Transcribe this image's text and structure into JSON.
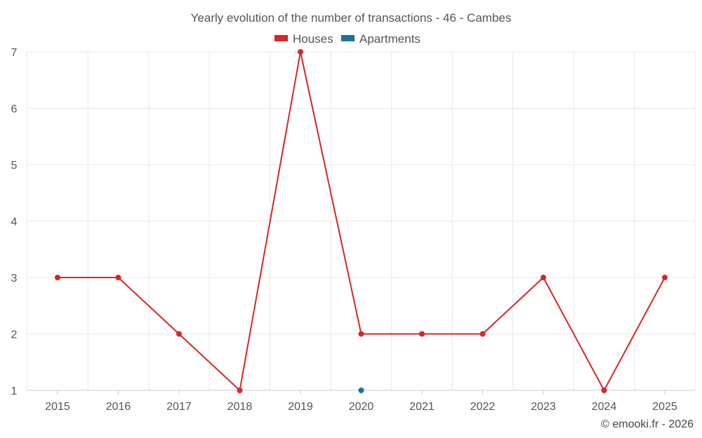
{
  "chart_data": {
    "type": "line",
    "title": "Yearly evolution of the number of transactions - 46 - Cambes",
    "categories": [
      "2015",
      "2016",
      "2017",
      "2018",
      "2019",
      "2020",
      "2021",
      "2022",
      "2023",
      "2024",
      "2025"
    ],
    "series": [
      {
        "name": "Houses",
        "color": "#d62728",
        "values": [
          3,
          3,
          2,
          1,
          7,
          2,
          2,
          2,
          3,
          1,
          3
        ]
      },
      {
        "name": "Apartments",
        "color": "#1f6fa3",
        "values": [
          null,
          null,
          null,
          null,
          null,
          1,
          null,
          null,
          null,
          null,
          null
        ]
      }
    ],
    "ylim": [
      1,
      7
    ],
    "yticks": [
      1,
      2,
      3,
      4,
      5,
      6,
      7
    ],
    "xlabel": "",
    "ylabel": "",
    "legend_position": "top-center",
    "grid": true
  },
  "credit": "© emooki.fr - 2026"
}
